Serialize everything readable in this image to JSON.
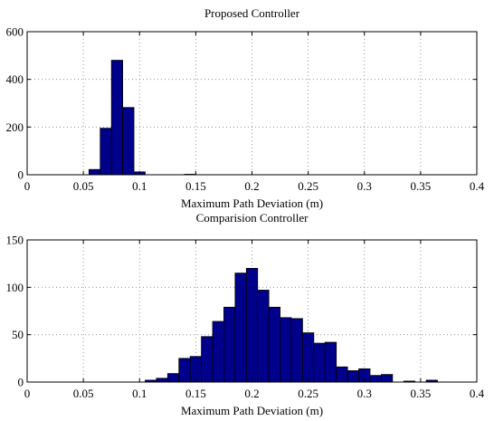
{
  "chart_data": [
    {
      "type": "bar",
      "title": "Proposed Controller",
      "xlabel": "Maximum Path Deviation (m)",
      "ylabel": "",
      "xlim": [
        0,
        0.4
      ],
      "ylim": [
        0,
        600
      ],
      "xticks": [
        0,
        0.05,
        0.1,
        0.15,
        0.2,
        0.25,
        0.3,
        0.35,
        0.4
      ],
      "xtick_labels": [
        "0",
        "0.05",
        "0.1",
        "0.15",
        "0.2",
        "0.25",
        "0.3",
        "0.35",
        "0.4"
      ],
      "yticks": [
        0,
        200,
        400,
        600
      ],
      "ytick_labels": [
        "0",
        "200",
        "400",
        "600"
      ],
      "grid": true,
      "bin_width": 0.01,
      "bins": [
        {
          "x": 0.06,
          "value": 22
        },
        {
          "x": 0.07,
          "value": 195
        },
        {
          "x": 0.08,
          "value": 480
        },
        {
          "x": 0.09,
          "value": 282
        },
        {
          "x": 0.1,
          "value": 12
        },
        {
          "x": 0.145,
          "value": 2
        }
      ],
      "colors": {
        "bar_fill": "#00008b",
        "bar_stroke": "#000000",
        "grid": "#808080"
      }
    },
    {
      "type": "bar",
      "title": "Comparision Controller",
      "xlabel": "Maximum Path Deviation (m)",
      "ylabel": "",
      "xlim": [
        0,
        0.4
      ],
      "ylim": [
        0,
        150
      ],
      "xticks": [
        0,
        0.05,
        0.1,
        0.15,
        0.2,
        0.25,
        0.3,
        0.35,
        0.4
      ],
      "xtick_labels": [
        "0",
        "0.05",
        "0.1",
        "0.15",
        "0.2",
        "0.25",
        "0.3",
        "0.35",
        "0.4"
      ],
      "yticks": [
        0,
        50,
        100,
        150
      ],
      "ytick_labels": [
        "0",
        "50",
        "100",
        "150"
      ],
      "grid": true,
      "bin_width": 0.01,
      "bins": [
        {
          "x": 0.11,
          "value": 2
        },
        {
          "x": 0.12,
          "value": 4
        },
        {
          "x": 0.13,
          "value": 9
        },
        {
          "x": 0.14,
          "value": 25
        },
        {
          "x": 0.15,
          "value": 27
        },
        {
          "x": 0.16,
          "value": 48
        },
        {
          "x": 0.17,
          "value": 64
        },
        {
          "x": 0.18,
          "value": 79
        },
        {
          "x": 0.19,
          "value": 115
        },
        {
          "x": 0.2,
          "value": 120
        },
        {
          "x": 0.21,
          "value": 97
        },
        {
          "x": 0.22,
          "value": 79
        },
        {
          "x": 0.23,
          "value": 68
        },
        {
          "x": 0.24,
          "value": 67
        },
        {
          "x": 0.25,
          "value": 52
        },
        {
          "x": 0.26,
          "value": 41
        },
        {
          "x": 0.27,
          "value": 42
        },
        {
          "x": 0.28,
          "value": 16
        },
        {
          "x": 0.29,
          "value": 12
        },
        {
          "x": 0.3,
          "value": 14
        },
        {
          "x": 0.31,
          "value": 7
        },
        {
          "x": 0.32,
          "value": 8
        },
        {
          "x": 0.34,
          "value": 1
        },
        {
          "x": 0.36,
          "value": 2
        }
      ],
      "colors": {
        "bar_fill": "#00008b",
        "bar_stroke": "#000000",
        "grid": "#808080"
      }
    }
  ]
}
